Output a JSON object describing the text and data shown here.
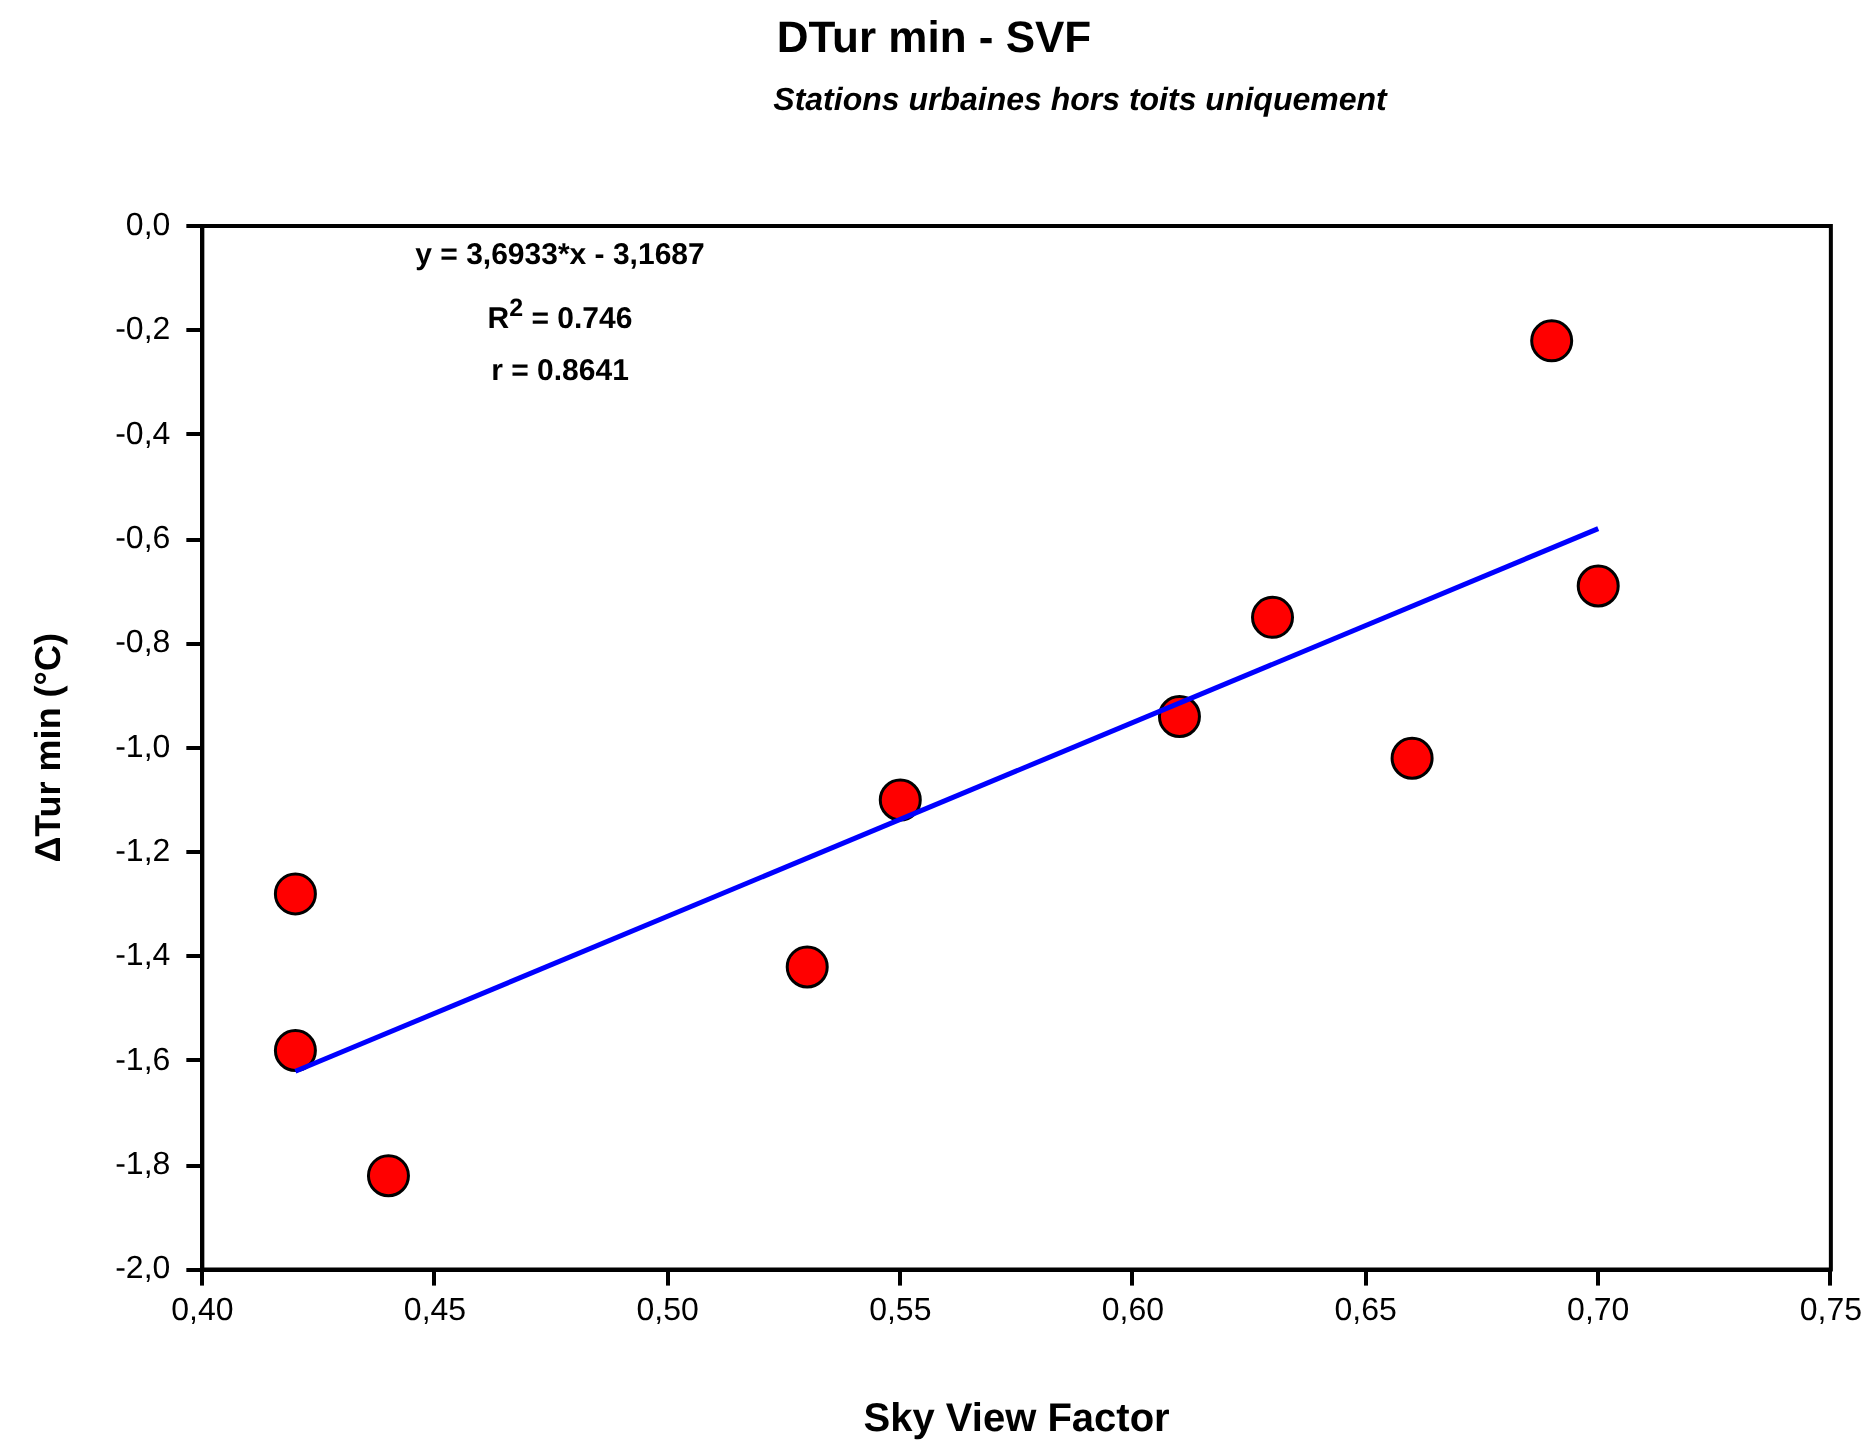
{
  "chart_data": {
    "type": "scatter",
    "title": "DTur min - SVF",
    "subtitle": "Stations urbaines hors toits uniquement",
    "xlabel": "Sky View Factor",
    "ylabel": "ΔTur min (°C)",
    "annotations": [
      "y = 3,6933*x - 3,1687",
      "R$^{2}$ = 0.746",
      "r = 0.8641"
    ],
    "series": [
      {
        "type": "scatter",
        "marker": "circle",
        "color": "#ff0000",
        "x": [
          0.42,
          0.42,
          0.44,
          0.53,
          0.55,
          0.61,
          0.63,
          0.66,
          0.69,
          0.7
        ],
        "values": [
          -1.28,
          -1.58,
          -1.82,
          -1.42,
          -1.1,
          -0.94,
          -0.75,
          -1.02,
          -0.22,
          -0.69
        ]
      },
      {
        "type": "line",
        "marker": "none",
        "color": "#0000ff",
        "x": [
          0.42,
          0.7
        ],
        "values": [
          -1.62,
          -0.58
        ]
      }
    ],
    "grid": false,
    "legend": false,
    "xlim": [
      0.4,
      0.75
    ],
    "xticks": [
      {
        "value": 0.4,
        "label": "0,40"
      },
      {
        "value": 0.45,
        "label": "0,45"
      },
      {
        "value": 0.5,
        "label": "0,50"
      },
      {
        "value": 0.55,
        "label": "0,55"
      },
      {
        "value": 0.6,
        "label": "0,60"
      },
      {
        "value": 0.65,
        "label": "0,65"
      },
      {
        "value": 0.7,
        "label": "0,70"
      },
      {
        "value": 0.75,
        "label": "0,75"
      }
    ],
    "ylim": [
      -2.0,
      0.0
    ],
    "yticks": [
      {
        "value": -2.0,
        "label": "-2,0"
      },
      {
        "value": -1.8,
        "label": "-1,8"
      },
      {
        "value": -1.6,
        "label": "-1,6"
      },
      {
        "value": -1.4,
        "label": "-1,4"
      },
      {
        "value": -1.2,
        "label": "-1,2"
      },
      {
        "value": -1.0,
        "label": "-1,0"
      },
      {
        "value": -0.8,
        "label": "-0,8"
      },
      {
        "value": -0.6,
        "label": "-0,6"
      },
      {
        "value": -0.4,
        "label": "-0,4"
      },
      {
        "value": -0.2,
        "label": "-0,2"
      },
      {
        "value": 0.0,
        "label": "0,0"
      }
    ]
  }
}
